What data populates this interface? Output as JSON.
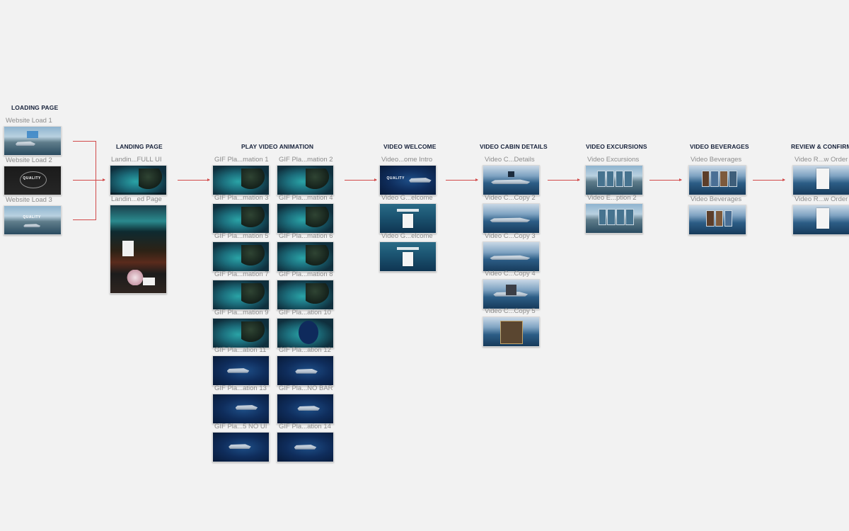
{
  "columns": {
    "loading": {
      "heading": "LOADING PAGE",
      "frames": [
        "Website Load 1",
        "Website Load 2",
        "Website Load 3"
      ]
    },
    "landing": {
      "heading": "LANDING PAGE",
      "frames": [
        "Landin...FULL UI",
        "Landin...ed Page"
      ]
    },
    "play": {
      "heading": "PLAY VIDEO ANIMATION",
      "left": [
        "GIF Pla...mation 1",
        "GIF Pla...mation 3",
        "GIF Pla...mation 5",
        "GIF Pla...mation 7",
        "GIF Pla...mation 9",
        "GIF Pla...ation 11",
        "GIF Pla...ation 13",
        "GIF Pla...5 NO UI"
      ],
      "right": [
        "GIF Pla...mation 2",
        "GIF Pla...mation 4",
        "GIF Pla...mation 6",
        "GIF Pla...mation 8",
        "GIF Pla...ation 10",
        "GIF Pla...ation 12",
        "GIF Pla...NO BAR",
        "GIF Pla...ation 14"
      ]
    },
    "welcome": {
      "heading": "VIDEO WELCOME",
      "frames": [
        "Video...ome Intro",
        "Video G...elcome",
        "Video G...elcome"
      ]
    },
    "cabin": {
      "heading": "VIDEO CABIN DETAILS",
      "frames": [
        "Video C...Details",
        "Video C...Copy 2",
        "Video C...Copy 3",
        "Video C...Copy 4",
        "Video C...Copy 5"
      ]
    },
    "excursions": {
      "heading": "VIDEO EXCURSIONS",
      "frames": [
        "Video Excursions",
        "Video E...ption 2"
      ]
    },
    "beverages": {
      "heading": "VIDEO BEVERAGES",
      "frames": [
        "Video Beverages",
        "Video Beverages"
      ]
    },
    "review": {
      "heading": "REVIEW & CONFIRM",
      "frames": [
        "Video R...w Order",
        "Video R...w Order"
      ]
    }
  },
  "logo_text": "QUALITY",
  "colors": {
    "background": "#f2f2f2",
    "connector": "#d24a4a",
    "heading": "#16213a",
    "label": "#8c8c8c"
  }
}
